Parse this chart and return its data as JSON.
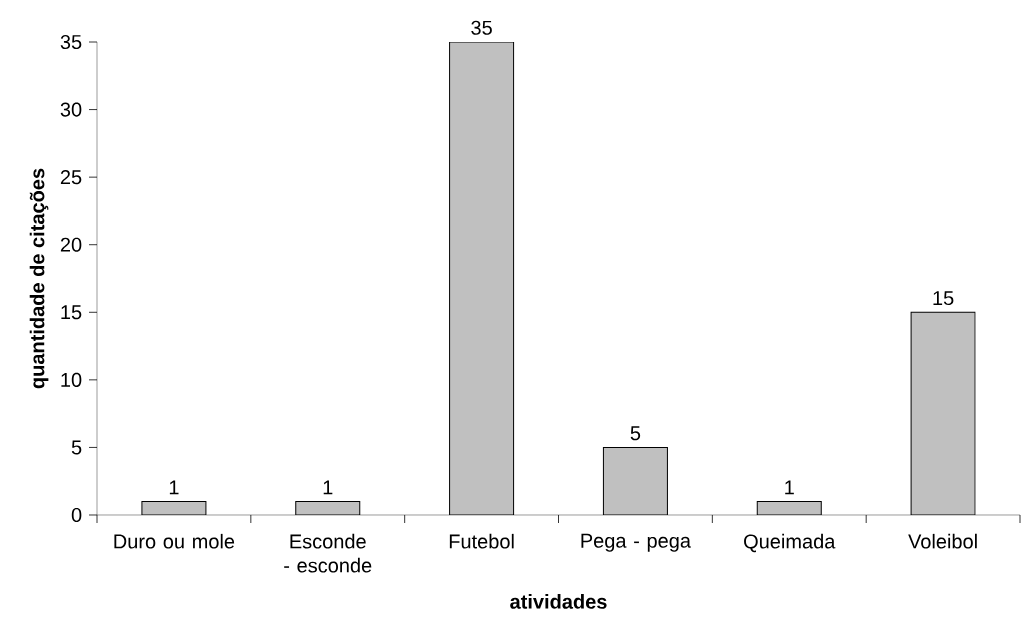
{
  "chart_data": {
    "type": "bar",
    "xlabel": "atividades",
    "ylabel": "quantidade de citações",
    "categories": [
      "Duro ou mole",
      "Esconde - esconde",
      "Futebol",
      "Pega - pega",
      "Queimada",
      "Voleibol"
    ],
    "values": [
      1,
      1,
      35,
      5,
      1,
      15
    ],
    "color": "#c0c0c0",
    "ylim": [
      0,
      35
    ],
    "yticks": [
      0,
      5,
      10,
      15,
      20,
      25,
      30,
      35
    ],
    "data_labels": true
  }
}
